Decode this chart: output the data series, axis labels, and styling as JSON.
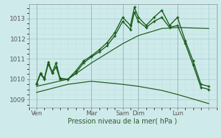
{
  "xlabel": "Pression niveau de la mer( hPa )",
  "bg_color": "#ceeaea",
  "grid_color_major": "#aed4d4",
  "grid_color_minor": "#c0e0e0",
  "line_color": "#1a5c1a",
  "ylim": [
    1008.6,
    1013.7
  ],
  "xlim": [
    0,
    24
  ],
  "yticks": [
    1009,
    1010,
    1011,
    1012,
    1013
  ],
  "xtick_positions": [
    1,
    8,
    12,
    14,
    19,
    23
  ],
  "xtick_labels": [
    "Ven",
    "Mar",
    "Sam",
    "Dim",
    "Lun",
    ""
  ],
  "line1_x": [
    1,
    1.5,
    2,
    2.5,
    3,
    3.5,
    4,
    5,
    6,
    7,
    8,
    9,
    10,
    11,
    12,
    13,
    13.5,
    14,
    15,
    16,
    17,
    18,
    19,
    20,
    21,
    22,
    23
  ],
  "line1_y": [
    1009.8,
    1010.3,
    1010.05,
    1010.85,
    1010.35,
    1010.8,
    1010.05,
    1010.0,
    1010.4,
    1010.9,
    1011.15,
    1011.45,
    1011.8,
    1012.3,
    1013.05,
    1012.65,
    1013.55,
    1013.05,
    1012.65,
    1013.05,
    1013.4,
    1012.65,
    1013.05,
    1011.9,
    1010.9,
    1009.75,
    1009.65
  ],
  "line2_x": [
    1,
    1.5,
    2,
    2.5,
    3,
    3.5,
    4,
    5,
    6,
    7,
    8,
    9,
    10,
    11,
    12,
    13,
    13.5,
    14,
    15,
    16,
    17,
    18,
    19,
    20,
    21,
    22,
    23
  ],
  "line2_y": [
    1009.75,
    1010.25,
    1010.0,
    1010.75,
    1010.3,
    1010.6,
    1010.0,
    1010.0,
    1010.3,
    1010.8,
    1011.1,
    1011.35,
    1011.65,
    1012.15,
    1012.85,
    1012.45,
    1013.3,
    1012.85,
    1012.55,
    1012.85,
    1013.05,
    1012.55,
    1012.65,
    1011.75,
    1010.7,
    1009.6,
    1009.5
  ],
  "line3_x": [
    1,
    5,
    8,
    12,
    14,
    17,
    19,
    23
  ],
  "line3_y": [
    1009.65,
    1010.0,
    1010.8,
    1011.75,
    1012.15,
    1012.5,
    1012.55,
    1012.5
  ],
  "line4_x": [
    1,
    5,
    8,
    12,
    14,
    17,
    19,
    23
  ],
  "line4_y": [
    1009.35,
    1009.75,
    1009.9,
    1009.75,
    1009.65,
    1009.45,
    1009.25,
    1008.8
  ]
}
